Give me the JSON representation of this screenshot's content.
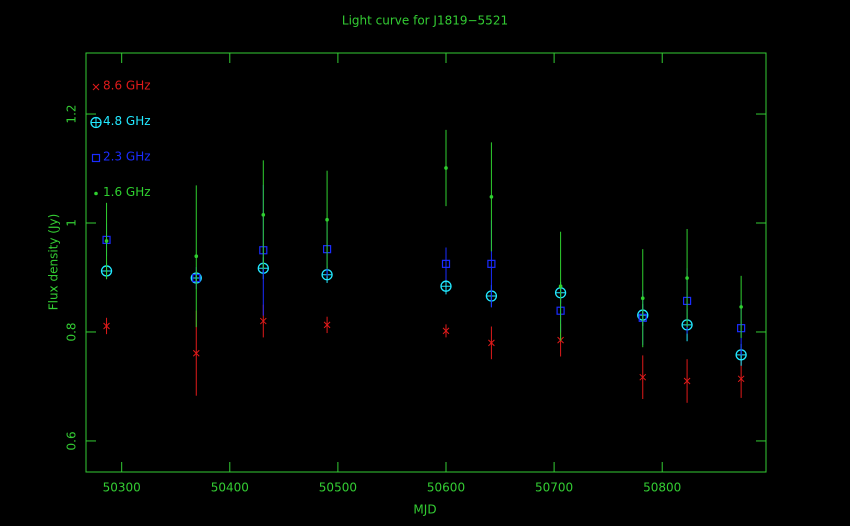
{
  "chart_data": {
    "type": "errorbar",
    "title": "Light curve for J1819−5521",
    "xlabel": "MJD",
    "ylabel": "Flux density (Jy)",
    "xlim": [
      50267,
      50896
    ],
    "xticks": [
      50300,
      50400,
      50500,
      50600,
      50700,
      50800
    ],
    "ylim": [
      0.543,
      1.312
    ],
    "yticks": [
      0.6,
      0.8,
      1,
      1.2
    ],
    "x": [
      50286,
      50369,
      50431,
      50490,
      50600,
      50642,
      50706,
      50782,
      50823,
      50873
    ],
    "legend": "upper left",
    "series": [
      {
        "name": "8.6 GHz",
        "color": "#e01a1a",
        "marker": "x",
        "values": [
          0.811,
          0.761,
          0.82,
          0.813,
          0.802,
          0.78,
          0.785,
          0.717,
          0.71,
          0.714
        ],
        "errors": [
          0.015,
          0.078,
          0.03,
          0.015,
          0.012,
          0.03,
          0.03,
          0.04,
          0.04,
          0.035
        ]
      },
      {
        "name": "4.8 GHz",
        "color": "#22e8ff",
        "marker": "circle-plus",
        "values": [
          0.912,
          0.899,
          0.917,
          0.905,
          0.884,
          0.866,
          0.872,
          0.831,
          0.813,
          0.758
        ],
        "errors": [
          0.015,
          0.01,
          0.02,
          0.015,
          0.015,
          0.02,
          0.02,
          0.02,
          0.03,
          0.02
        ]
      },
      {
        "name": "2.3 GHz",
        "color": "#1a2cff",
        "marker": "square",
        "values": [
          0.969,
          0.899,
          0.95,
          0.952,
          0.925,
          0.925,
          0.839,
          0.826,
          0.857,
          0.807
        ],
        "errors": [
          0.03,
          0.02,
          0.12,
          0.05,
          0.03,
          0.08,
          0.04,
          0.05,
          0.06,
          0.05
        ]
      },
      {
        "name": "1.6 GHz",
        "color": "#2fd02f",
        "marker": "dot",
        "values": [
          0.967,
          0.939,
          1.015,
          1.006,
          1.101,
          1.048,
          0.884,
          0.862,
          0.899,
          0.846
        ],
        "errors": [
          0.07,
          0.13,
          0.1,
          0.09,
          0.07,
          0.1,
          0.1,
          0.09,
          0.09,
          0.057
        ]
      }
    ]
  }
}
